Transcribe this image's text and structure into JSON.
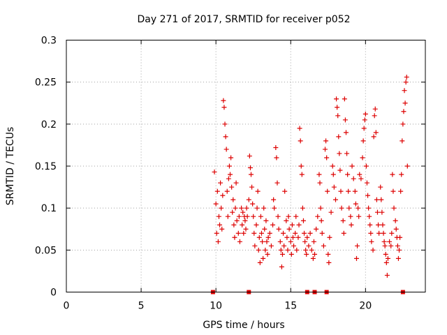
{
  "chart_data": {
    "type": "scatter",
    "title": "Day 271 of 2017, SRMTID for receiver p052",
    "xlabel": "GPS time / hours",
    "ylabel": "SRMTID / TECUs",
    "xlim": [
      0,
      24
    ],
    "ylim": [
      0,
      0.3
    ],
    "xticks": [
      0,
      5,
      10,
      15,
      20
    ],
    "yticks": [
      0,
      0.05,
      0.1,
      0.15,
      0.2,
      0.25,
      0.3
    ],
    "xtick_labels": [
      "0",
      "5",
      "10",
      "15",
      "20"
    ],
    "ytick_labels": [
      "0",
      "0.05",
      "0.1",
      "0.15",
      "0.2",
      "0.25",
      "0.3"
    ],
    "grid": true,
    "marker": "+",
    "color": "#dd0000",
    "baseline_markers_x": [
      9.8,
      12.2,
      16.1,
      16.6,
      17.4,
      22.5
    ],
    "series": [
      {
        "name": "SRMTID",
        "points": [
          [
            9.9,
            0.143
          ],
          [
            10.0,
            0.105
          ],
          [
            10.05,
            0.07
          ],
          [
            10.1,
            0.12
          ],
          [
            10.15,
            0.06
          ],
          [
            10.2,
            0.09
          ],
          [
            10.25,
            0.08
          ],
          [
            10.3,
            0.13
          ],
          [
            10.35,
            0.1
          ],
          [
            10.4,
            0.075
          ],
          [
            10.45,
            0.115
          ],
          [
            10.5,
            0.228
          ],
          [
            10.55,
            0.22
          ],
          [
            10.6,
            0.2
          ],
          [
            10.65,
            0.185
          ],
          [
            10.7,
            0.17
          ],
          [
            10.75,
            0.12
          ],
          [
            10.8,
            0.09
          ],
          [
            10.85,
            0.135
          ],
          [
            10.9,
            0.15
          ],
          [
            10.95,
            0.14
          ],
          [
            11.0,
            0.16
          ],
          [
            11.05,
            0.125
          ],
          [
            11.1,
            0.095
          ],
          [
            11.15,
            0.11
          ],
          [
            11.2,
            0.08
          ],
          [
            11.25,
            0.065
          ],
          [
            11.3,
            0.1
          ],
          [
            11.35,
            0.13
          ],
          [
            11.4,
            0.085
          ],
          [
            11.5,
            0.07
          ],
          [
            11.55,
            0.09
          ],
          [
            11.6,
            0.06
          ],
          [
            11.7,
            0.1
          ],
          [
            11.75,
            0.08
          ],
          [
            11.8,
            0.095
          ],
          [
            11.85,
            0.07
          ],
          [
            11.9,
            0.09
          ],
          [
            11.95,
            0.085
          ],
          [
            12.0,
            0.075
          ],
          [
            12.05,
            0.1
          ],
          [
            12.1,
            0.09
          ],
          [
            12.2,
            0.11
          ],
          [
            12.25,
            0.162
          ],
          [
            12.3,
            0.148
          ],
          [
            12.35,
            0.14
          ],
          [
            12.4,
            0.125
          ],
          [
            12.45,
            0.105
          ],
          [
            12.5,
            0.09
          ],
          [
            12.55,
            0.07
          ],
          [
            12.6,
            0.055
          ],
          [
            12.7,
            0.08
          ],
          [
            12.75,
            0.1
          ],
          [
            12.8,
            0.12
          ],
          [
            12.85,
            0.05
          ],
          [
            12.9,
            0.065
          ],
          [
            12.95,
            0.035
          ],
          [
            13.0,
            0.09
          ],
          [
            13.05,
            0.07
          ],
          [
            13.1,
            0.06
          ],
          [
            13.15,
            0.04
          ],
          [
            13.2,
            0.1
          ],
          [
            13.25,
            0.075
          ],
          [
            13.3,
            0.05
          ],
          [
            13.35,
            0.085
          ],
          [
            13.4,
            0.06
          ],
          [
            13.45,
            0.045
          ],
          [
            13.5,
            0.065
          ],
          [
            13.6,
            0.07
          ],
          [
            13.7,
            0.055
          ],
          [
            13.8,
            0.08
          ],
          [
            13.85,
            0.11
          ],
          [
            13.9,
            0.1
          ],
          [
            14.0,
            0.172
          ],
          [
            14.05,
            0.16
          ],
          [
            14.1,
            0.13
          ],
          [
            14.15,
            0.09
          ],
          [
            14.2,
            0.075
          ],
          [
            14.3,
            0.06
          ],
          [
            14.35,
            0.05
          ],
          [
            14.4,
            0.03
          ],
          [
            14.45,
            0.045
          ],
          [
            14.5,
            0.07
          ],
          [
            14.55,
            0.055
          ],
          [
            14.6,
            0.12
          ],
          [
            14.7,
            0.085
          ],
          [
            14.75,
            0.065
          ],
          [
            14.8,
            0.05
          ],
          [
            14.85,
            0.09
          ],
          [
            14.9,
            0.075
          ],
          [
            15.0,
            0.06
          ],
          [
            15.05,
            0.045
          ],
          [
            15.1,
            0.08
          ],
          [
            15.15,
            0.065
          ],
          [
            15.2,
            0.055
          ],
          [
            15.3,
            0.07
          ],
          [
            15.35,
            0.09
          ],
          [
            15.4,
            0.05
          ],
          [
            15.5,
            0.065
          ],
          [
            15.55,
            0.08
          ],
          [
            15.6,
            0.195
          ],
          [
            15.65,
            0.18
          ],
          [
            15.7,
            0.15
          ],
          [
            15.75,
            0.14
          ],
          [
            15.8,
            0.1
          ],
          [
            15.85,
            0.085
          ],
          [
            15.9,
            0.07
          ],
          [
            15.95,
            0.06
          ],
          [
            16.0,
            0.05
          ],
          [
            16.05,
            0.045
          ],
          [
            16.1,
            0.065
          ],
          [
            16.2,
            0.055
          ],
          [
            16.3,
            0.07
          ],
          [
            16.4,
            0.05
          ],
          [
            16.5,
            0.04
          ],
          [
            16.55,
            0.06
          ],
          [
            16.6,
            0.045
          ],
          [
            16.7,
            0.075
          ],
          [
            16.8,
            0.09
          ],
          [
            16.9,
            0.14
          ],
          [
            16.95,
            0.13
          ],
          [
            17.0,
            0.1
          ],
          [
            17.05,
            0.085
          ],
          [
            17.1,
            0.07
          ],
          [
            17.2,
            0.055
          ],
          [
            17.3,
            0.17
          ],
          [
            17.35,
            0.18
          ],
          [
            17.4,
            0.16
          ],
          [
            17.45,
            0.12
          ],
          [
            17.5,
            0.045
          ],
          [
            17.55,
            0.035
          ],
          [
            17.6,
            0.065
          ],
          [
            17.7,
            0.095
          ],
          [
            17.8,
            0.15
          ],
          [
            17.85,
            0.14
          ],
          [
            17.9,
            0.125
          ],
          [
            18.0,
            0.11
          ],
          [
            18.05,
            0.23
          ],
          [
            18.1,
            0.22
          ],
          [
            18.15,
            0.21
          ],
          [
            18.2,
            0.185
          ],
          [
            18.25,
            0.165
          ],
          [
            18.3,
            0.145
          ],
          [
            18.35,
            0.12
          ],
          [
            18.4,
            0.1
          ],
          [
            18.5,
            0.085
          ],
          [
            18.55,
            0.07
          ],
          [
            18.6,
            0.23
          ],
          [
            18.65,
            0.205
          ],
          [
            18.7,
            0.19
          ],
          [
            18.75,
            0.165
          ],
          [
            18.8,
            0.14
          ],
          [
            18.85,
            0.12
          ],
          [
            18.9,
            0.1
          ],
          [
            19.0,
            0.09
          ],
          [
            19.05,
            0.08
          ],
          [
            19.1,
            0.15
          ],
          [
            19.2,
            0.135
          ],
          [
            19.3,
            0.12
          ],
          [
            19.35,
            0.105
          ],
          [
            19.4,
            0.04
          ],
          [
            19.45,
            0.055
          ],
          [
            19.5,
            0.1
          ],
          [
            19.55,
            0.09
          ],
          [
            19.6,
            0.14
          ],
          [
            19.7,
            0.135
          ],
          [
            19.8,
            0.16
          ],
          [
            19.85,
            0.18
          ],
          [
            19.9,
            0.195
          ],
          [
            19.95,
            0.205
          ],
          [
            20.0,
            0.212
          ],
          [
            20.05,
            0.15
          ],
          [
            20.1,
            0.13
          ],
          [
            20.15,
            0.115
          ],
          [
            20.2,
            0.1
          ],
          [
            20.25,
            0.09
          ],
          [
            20.3,
            0.08
          ],
          [
            20.35,
            0.07
          ],
          [
            20.4,
            0.06
          ],
          [
            20.5,
            0.05
          ],
          [
            20.55,
            0.185
          ],
          [
            20.6,
            0.21
          ],
          [
            20.65,
            0.218
          ],
          [
            20.7,
            0.19
          ],
          [
            20.75,
            0.11
          ],
          [
            20.8,
            0.095
          ],
          [
            20.85,
            0.08
          ],
          [
            20.9,
            0.07
          ],
          [
            21.0,
            0.125
          ],
          [
            21.05,
            0.11
          ],
          [
            21.1,
            0.095
          ],
          [
            21.15,
            0.08
          ],
          [
            21.2,
            0.07
          ],
          [
            21.25,
            0.06
          ],
          [
            21.3,
            0.055
          ],
          [
            21.35,
            0.045
          ],
          [
            21.4,
            0.035
          ],
          [
            21.45,
            0.02
          ],
          [
            21.5,
            0.04
          ],
          [
            21.6,
            0.06
          ],
          [
            21.7,
            0.055
          ],
          [
            21.75,
            0.07
          ],
          [
            21.8,
            0.14
          ],
          [
            21.85,
            0.12
          ],
          [
            21.9,
            0.1
          ],
          [
            22.0,
            0.085
          ],
          [
            22.05,
            0.075
          ],
          [
            22.1,
            0.065
          ],
          [
            22.15,
            0.055
          ],
          [
            22.2,
            0.04
          ],
          [
            22.25,
            0.05
          ],
          [
            22.3,
            0.065
          ],
          [
            22.35,
            0.12
          ],
          [
            22.4,
            0.14
          ],
          [
            22.45,
            0.18
          ],
          [
            22.5,
            0.2
          ],
          [
            22.55,
            0.215
          ],
          [
            22.6,
            0.24
          ],
          [
            22.65,
            0.225
          ],
          [
            22.7,
            0.25
          ],
          [
            22.75,
            0.256
          ],
          [
            22.8,
            0.15
          ]
        ]
      }
    ]
  }
}
